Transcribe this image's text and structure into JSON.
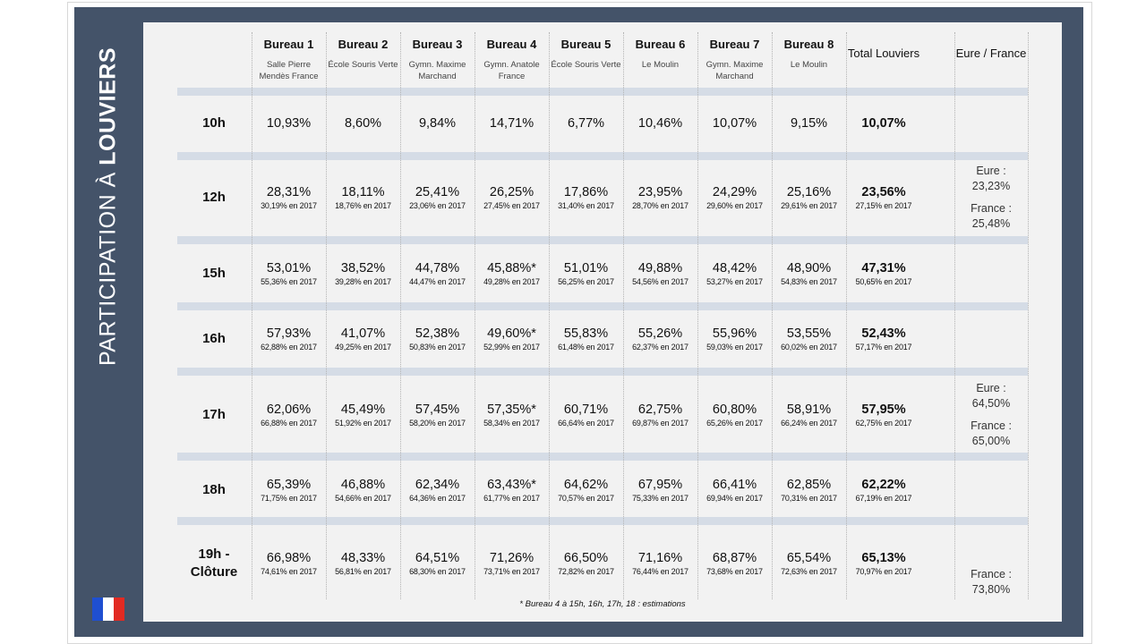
{
  "title": {
    "light": "PARTICIPATION À ",
    "bold": "LOUVIERS"
  },
  "colors": {
    "panel": "#445369",
    "inner": "#f2f2f2",
    "separator": "#d5dce6",
    "flag_blue": "#1f4fd1",
    "flag_white": "#ffffff",
    "flag_red": "#e22a22"
  },
  "flag_icon": "french-flag-icon",
  "columns": [
    {
      "name": "Bureau 1",
      "place": "Salle Pierre Mendès France"
    },
    {
      "name": "Bureau 2",
      "place": "École Souris Verte"
    },
    {
      "name": "Bureau 3",
      "place": "Gymn. Maxime Marchand"
    },
    {
      "name": "Bureau 4",
      "place": "Gymn. Anatole France"
    },
    {
      "name": "Bureau 5",
      "place": "École Souris Verte"
    },
    {
      "name": "Bureau 6",
      "place": "Le Moulin"
    },
    {
      "name": "Bureau 7",
      "place": "Gymn. Maxime Marchand"
    },
    {
      "name": "Bureau 8",
      "place": "Le Moulin"
    }
  ],
  "total_header": "Total Louviers",
  "eure_header": "Eure / France",
  "rows": [
    {
      "label": "10h",
      "values": [
        "10,93%",
        "8,60%",
        "9,84%",
        "14,71%",
        "6,77%",
        "10,46%",
        "10,07%",
        "9,15%"
      ],
      "prev": [
        "",
        "",
        "",
        "",
        "",
        "",
        "",
        ""
      ],
      "total": "10,07%",
      "total_prev": "",
      "eure": []
    },
    {
      "label": "12h",
      "values": [
        "28,31%",
        "18,11%",
        "25,41%",
        "26,25%",
        "17,86%",
        "23,95%",
        "24,29%",
        "25,16%"
      ],
      "prev": [
        "30,19% en 2017",
        "18,76% en 2017",
        "23,06% en 2017",
        "27,45% en 2017",
        "31,40% en 2017",
        "28,70% en 2017",
        "29,60% en 2017",
        "29,61% en 2017"
      ],
      "total": "23,56%",
      "total_prev": "27,15% en 2017",
      "eure": [
        {
          "label": "Eure :",
          "value": "23,23%"
        },
        {
          "label": "France :",
          "value": "25,48%"
        }
      ]
    },
    {
      "label": "15h",
      "values": [
        "53,01%",
        "38,52%",
        "44,78%",
        "45,88%*",
        "51,01%",
        "49,88%",
        "48,42%",
        "48,90%"
      ],
      "prev": [
        "55,36% en 2017",
        "39,28% en 2017",
        "44,47% en 2017",
        "49,28% en 2017",
        "56,25% en 2017",
        "54,56% en 2017",
        "53,27% en 2017",
        "54,83% en 2017"
      ],
      "total": "47,31%",
      "total_prev": "50,65% en 2017",
      "eure": []
    },
    {
      "label": "16h",
      "values": [
        "57,93%",
        "41,07%",
        "52,38%",
        "49,60%*",
        "55,83%",
        "55,26%",
        "55,96%",
        "53,55%"
      ],
      "prev": [
        "62,88% en 2017",
        "49,25% en 2017",
        "50,83% en 2017",
        "52,99% en 2017",
        "61,48% en 2017",
        "62,37% en 2017",
        "59,03% en 2017",
        "60,02% en 2017"
      ],
      "total": "52,43%",
      "total_prev": "57,17% en 2017",
      "eure": []
    },
    {
      "label": "17h",
      "values": [
        "62,06%",
        "45,49%",
        "57,45%",
        "57,35%*",
        "60,71%",
        "62,75%",
        "60,80%",
        "58,91%"
      ],
      "prev": [
        "66,88% en 2017",
        "51,92% en 2017",
        "58,20% en 2017",
        "58,34% en 2017",
        "66,64% en 2017",
        "69,87% en 2017",
        "65,26% en 2017",
        "66,24% en 2017"
      ],
      "total": "57,95%",
      "total_prev": "62,75% en 2017",
      "eure": [
        {
          "label": "Eure :",
          "value": "64,50%"
        },
        {
          "label": "France :",
          "value": "65,00%"
        }
      ]
    },
    {
      "label": "18h",
      "values": [
        "65,39%",
        "46,88%",
        "62,34%",
        "63,43%*",
        "64,62%",
        "67,95%",
        "66,41%",
        "62,85%"
      ],
      "prev": [
        "71,75% en 2017",
        "54,66% en 2017",
        "64,36% en 2017",
        "61,77% en 2017",
        "70,57% en 2017",
        "75,33% en 2017",
        "69,94% en 2017",
        "70,31% en 2017"
      ],
      "total": "62,22%",
      "total_prev": "67,19% en 2017",
      "eure": []
    },
    {
      "label": "19h - Clôture",
      "values": [
        "66,98%",
        "48,33%",
        "64,51%",
        "71,26%",
        "66,50%",
        "71,16%",
        "68,87%",
        "65,54%"
      ],
      "prev": [
        "74,61% en 2017",
        "56,81% en 2017",
        "68,30% en 2017",
        "73,71% en 2017",
        "72,82% en 2017",
        "76,44% en 2017",
        "73,68% en 2017",
        "72,63% en 2017"
      ],
      "total": "65,13%",
      "total_prev": "70,97% en 2017",
      "eure": [
        {
          "label": "France :",
          "value": "73,80%"
        }
      ]
    }
  ],
  "footnote": "* Bureau 4 à 15h, 16h, 17h, 18 : estimations"
}
